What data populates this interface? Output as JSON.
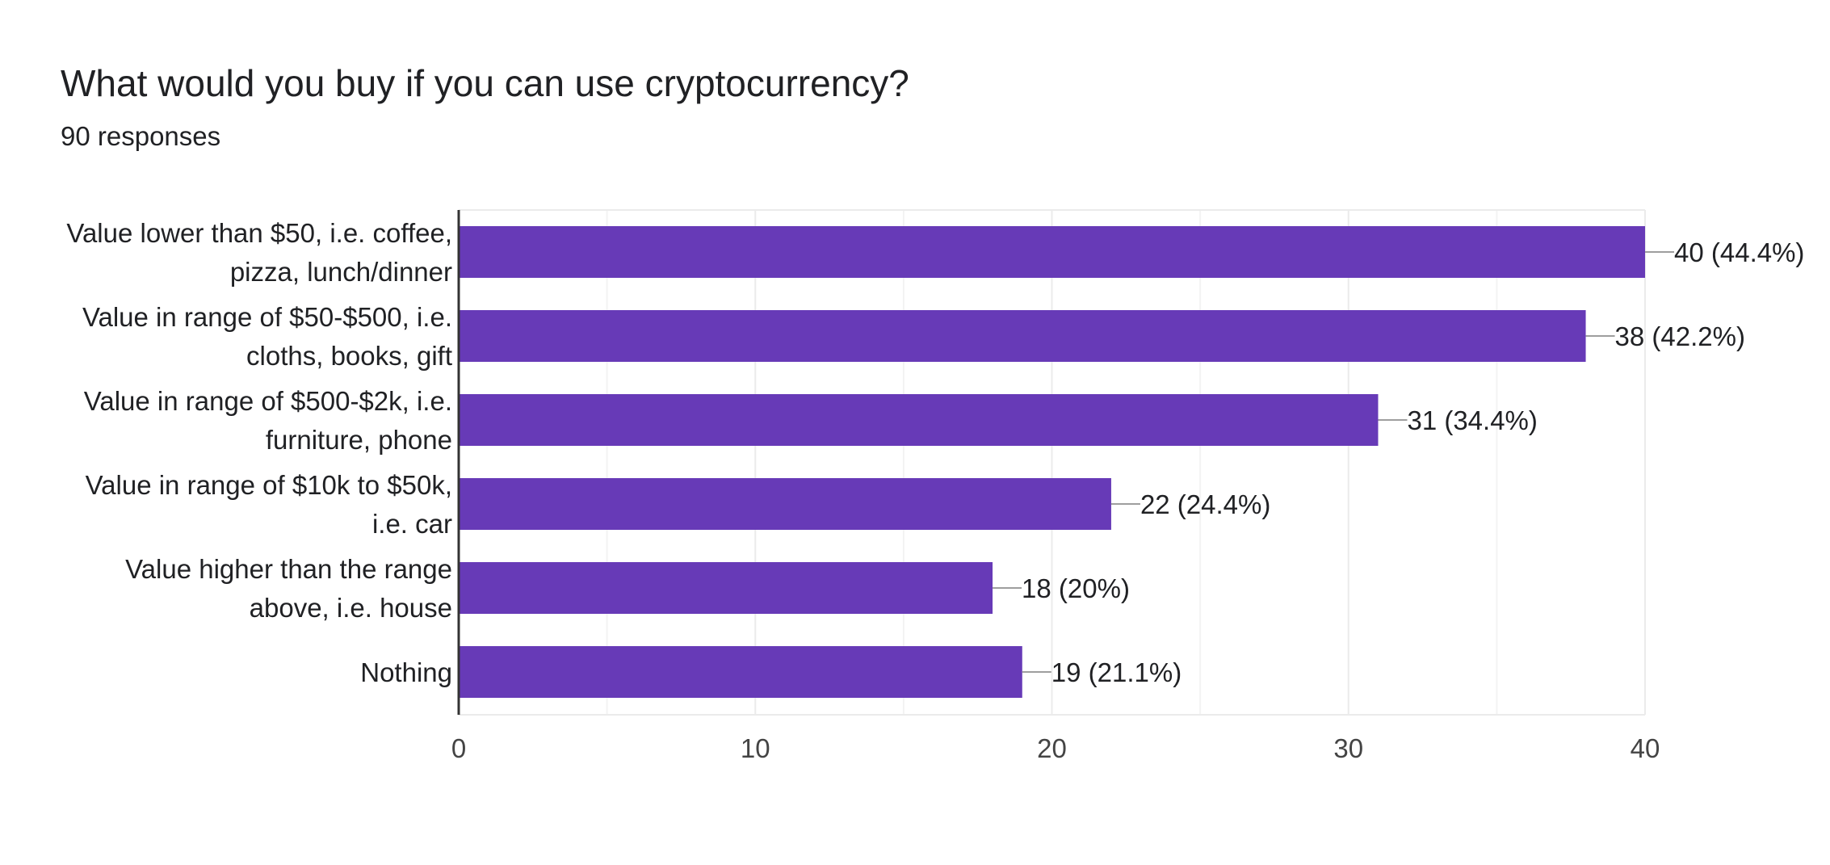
{
  "title": "What would you buy if you can use cryptocurrency?",
  "subtitle": "90 responses",
  "chart_data": {
    "type": "bar",
    "orientation": "horizontal",
    "title": "What would you buy if you can use cryptocurrency?",
    "subtitle": "90 responses",
    "categories": [
      [
        "Value lower than $50, i.e. coffee,",
        "pizza, lunch/dinner"
      ],
      [
        "Value in range of $50-$500, i.e.",
        "cloths, books, gift"
      ],
      [
        "Value in range of $500-$2k, i.e.",
        "furniture, phone"
      ],
      [
        "Value in range of $10k to $50k,",
        "i.e. car"
      ],
      [
        "Value higher than the range",
        "above, i.e. house"
      ],
      [
        "Nothing"
      ]
    ],
    "values": [
      40,
      38,
      31,
      22,
      18,
      19
    ],
    "data_labels": [
      "40 (44.4%)",
      "38 (42.2%)",
      "31 (34.4%)",
      "22 (24.4%)",
      "18 (20%)",
      "19 (21.1%)"
    ],
    "xticks": [
      0,
      10,
      20,
      30,
      40
    ],
    "xlim": [
      0,
      40
    ],
    "grid": true,
    "bar_color": "#673ab7",
    "grid_color": "#ebebeb",
    "leader_color": "#9e9e9e",
    "axis_color": "#333333"
  }
}
